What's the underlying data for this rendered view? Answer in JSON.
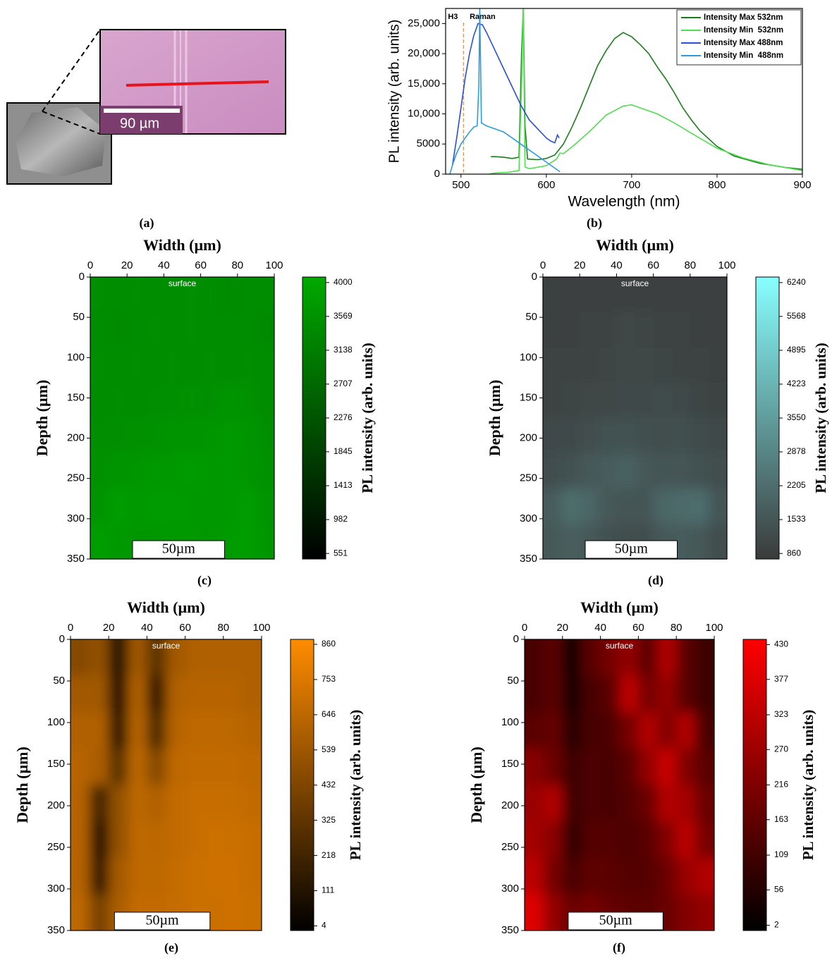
{
  "panel_a": {
    "scale_label": "90 µm",
    "caption": "(a)"
  },
  "chart_data": [
    {
      "type": "line",
      "caption": "(b)",
      "xlabel": "Wavelength (nm)",
      "ylabel": "PL intensity (arb. units)",
      "xlim": [
        482,
        900
      ],
      "xticks": [
        500,
        600,
        700,
        800,
        900
      ],
      "ylim": [
        0,
        27500
      ],
      "yticks": [
        0,
        5000,
        {
          "value": 10000,
          "label": "10,000"
        },
        {
          "value": 15000,
          "label": "15,000"
        },
        {
          "value": 20000,
          "label": "20,000"
        },
        {
          "value": 25000,
          "label": "25,000"
        }
      ],
      "legend": "upper right",
      "annotations": [
        {
          "text": "H3",
          "x": 503
        },
        {
          "text": "Raman",
          "x": 522
        }
      ],
      "series": [
        {
          "name": "Intensity Max 532nm",
          "color": "#1b7d1b",
          "x": [
            535,
            540,
            550,
            560,
            568,
            571,
            573,
            575,
            578,
            590,
            600,
            610,
            620,
            630,
            640,
            650,
            660,
            670,
            680,
            690,
            700,
            710,
            720,
            730,
            740,
            750,
            760,
            770,
            780,
            800,
            820,
            850,
            880,
            900
          ],
          "values": [
            2900,
            2900,
            2800,
            2600,
            2800,
            20000,
            27500,
            8000,
            2500,
            2400,
            2600,
            3200,
            5000,
            7800,
            11000,
            14500,
            18000,
            20500,
            22500,
            23500,
            22800,
            21500,
            20000,
            17800,
            15800,
            13500,
            11000,
            9000,
            7200,
            4600,
            3000,
            1800,
            1100,
            800
          ]
        },
        {
          "name": "Intensity Min  532nm",
          "color": "#4ee04e",
          "x": [
            533,
            540,
            555,
            568,
            571,
            573,
            575,
            580,
            600,
            612,
            616,
            620,
            630,
            650,
            670,
            690,
            700,
            710,
            730,
            750,
            770,
            800,
            830,
            860,
            900
          ],
          "values": [
            0,
            200,
            300,
            600,
            15000,
            27500,
            1200,
            900,
            1400,
            2500,
            3500,
            3400,
            4500,
            7000,
            9800,
            11300,
            11500,
            11000,
            10000,
            8500,
            6800,
            4300,
            2700,
            1600,
            600
          ]
        },
        {
          "name": "Intensity Max 488nm",
          "color": "#2a4fd8",
          "x": [
            490,
            495,
            500,
            505,
            510,
            515,
            520,
            525,
            530,
            540,
            550,
            560,
            570,
            580,
            590,
            600,
            605,
            610,
            613,
            615
          ],
          "values": [
            1500,
            6000,
            11000,
            16000,
            20000,
            23000,
            25000,
            24800,
            23500,
            20500,
            17500,
            14500,
            11500,
            9000,
            7500,
            6000,
            5500,
            5200,
            6500,
            6000
          ]
        },
        {
          "name": "Intensity Min  488nm",
          "color": "#2a9de0",
          "x": [
            487,
            490,
            495,
            500,
            505,
            510,
            515,
            519,
            521,
            522,
            524,
            530,
            540,
            550,
            560,
            570,
            580,
            590,
            600,
            610,
            616
          ],
          "values": [
            0,
            1500,
            3500,
            5000,
            6000,
            7000,
            7800,
            8000,
            15000,
            27500,
            8500,
            8000,
            7500,
            7000,
            6000,
            5000,
            4000,
            3000,
            2000,
            1000,
            400
          ]
        }
      ]
    },
    {
      "type": "heatmap",
      "caption": "(c)",
      "xlabel": "Width (µm)",
      "ylabel": "Depth (µm)",
      "xlim": [
        0,
        100
      ],
      "xticks": [
        0,
        20,
        40,
        60,
        80,
        100
      ],
      "ylim": [
        0,
        350
      ],
      "y_inverted": true,
      "yticks": [
        0,
        50,
        100,
        150,
        200,
        250,
        300,
        350
      ],
      "annotation": "surface",
      "scale_bar": "50µm",
      "colorbar": {
        "label": "PL intensity (arb. units)",
        "clim": [
          480,
          4070
        ],
        "colormap": [
          "#000000",
          "#00aa00"
        ],
        "ticks": [
          551,
          982,
          1413,
          1845,
          2276,
          2707,
          3138,
          3569,
          4000
        ]
      },
      "z": [
        [
          3500,
          3450,
          3500,
          3450,
          3450,
          3500,
          3450,
          3400,
          3450,
          3450
        ],
        [
          3450,
          3400,
          3450,
          3500,
          3450,
          3500,
          3450,
          3450,
          3450,
          3400
        ],
        [
          3500,
          3450,
          3500,
          3450,
          3500,
          3450,
          3500,
          3450,
          3500,
          3450
        ],
        [
          3450,
          3500,
          3450,
          3500,
          3500,
          3550,
          3500,
          3600,
          3550,
          3450
        ],
        [
          3500,
          3500,
          3550,
          3550,
          3600,
          3600,
          3650,
          3700,
          3650,
          3500
        ],
        [
          3550,
          3600,
          3650,
          3700,
          3700,
          3750,
          3700,
          3700,
          3650,
          3550
        ],
        [
          3600,
          3800,
          3700,
          3750,
          3750,
          3700,
          3700,
          3700,
          3800,
          3600
        ],
        [
          3800,
          3700,
          3650,
          3650,
          3700,
          3700,
          3650,
          3750,
          3800,
          3650
        ]
      ]
    },
    {
      "type": "heatmap",
      "caption": "(d)",
      "xlabel": "Width (µm)",
      "ylabel": "Depth (µm)",
      "xlim": [
        0,
        100
      ],
      "xticks": [
        0,
        20,
        40,
        60,
        80,
        100
      ],
      "ylim": [
        0,
        350
      ],
      "y_inverted": true,
      "yticks": [
        0,
        50,
        100,
        150,
        200,
        250,
        300,
        350
      ],
      "annotation": "surface",
      "scale_bar": "50µm",
      "colorbar": {
        "label": "PL intensity (arb. units)",
        "clim": [
          750,
          6350
        ],
        "colormap": [
          "#3a3a3a",
          "#88ffff"
        ],
        "ticks": [
          860,
          1533,
          2205,
          2878,
          3550,
          4223,
          4895,
          5568,
          6240
        ]
      },
      "z": [
        [
          950,
          950,
          950,
          950,
          950,
          950,
          950,
          950,
          950,
          950
        ],
        [
          950,
          950,
          1000,
          1000,
          1100,
          1050,
          1000,
          1000,
          950,
          950
        ],
        [
          1000,
          1000,
          1000,
          1050,
          1100,
          1100,
          1050,
          1000,
          1000,
          950
        ],
        [
          1000,
          1050,
          1100,
          1100,
          1150,
          1200,
          1250,
          1150,
          1050,
          1000
        ],
        [
          1150,
          1200,
          1300,
          1400,
          1400,
          1350,
          1300,
          1350,
          1250,
          1150
        ],
        [
          1300,
          1400,
          1600,
          1700,
          1900,
          1600,
          1500,
          1500,
          1400,
          1300
        ],
        [
          1700,
          2200,
          2000,
          1600,
          1500,
          1500,
          2000,
          2100,
          2200,
          1500
        ],
        [
          1600,
          1800,
          1600,
          1400,
          1300,
          1300,
          1600,
          1700,
          1600,
          1300
        ]
      ]
    },
    {
      "type": "heatmap",
      "caption": "(e)",
      "xlabel": "Width (µm)",
      "ylabel": "Depth (µm)",
      "xlim": [
        0,
        100
      ],
      "xticks": [
        0,
        20,
        40,
        60,
        80,
        100
      ],
      "ylim": [
        0,
        350
      ],
      "y_inverted": true,
      "yticks": [
        0,
        50,
        100,
        150,
        200,
        250,
        300,
        350
      ],
      "annotation": "surface",
      "scale_bar": "50µm",
      "colorbar": {
        "label": "PL intensity (arb. units)",
        "clim": [
          -10,
          875
        ],
        "colormap": [
          "#000000",
          "#ff8c00"
        ],
        "ticks": [
          4,
          111,
          218,
          325,
          432,
          539,
          646,
          753,
          860
        ]
      },
      "z": [
        [
          450,
          500,
          60,
          550,
          300,
          550,
          600,
          600,
          600,
          600
        ],
        [
          550,
          550,
          80,
          600,
          150,
          600,
          620,
          620,
          620,
          600
        ],
        [
          600,
          600,
          120,
          620,
          250,
          620,
          650,
          650,
          640,
          620
        ],
        [
          620,
          580,
          300,
          640,
          450,
          650,
          660,
          660,
          660,
          650
        ],
        [
          620,
          200,
          500,
          640,
          600,
          660,
          680,
          680,
          680,
          660
        ],
        [
          620,
          100,
          500,
          650,
          640,
          660,
          680,
          700,
          690,
          680
        ],
        [
          620,
          150,
          560,
          650,
          650,
          670,
          690,
          700,
          700,
          680
        ],
        [
          640,
          400,
          580,
          660,
          660,
          670,
          690,
          690,
          700,
          690
        ]
      ]
    },
    {
      "type": "heatmap",
      "caption": "(f)",
      "xlabel": "Width (µm)",
      "ylabel": "Depth (µm)",
      "xlim": [
        0,
        100
      ],
      "xticks": [
        0,
        20,
        40,
        60,
        80,
        100
      ],
      "ylim": [
        0,
        350
      ],
      "y_inverted": true,
      "yticks": [
        0,
        50,
        100,
        150,
        200,
        250,
        300,
        350
      ],
      "annotation": "surface",
      "scale_bar": "50µm",
      "colorbar": {
        "label": "PL intensity (arb. units)",
        "clim": [
          -6,
          438
        ],
        "colormap": [
          "#000000",
          "#ff0000"
        ],
        "ticks": [
          2,
          56,
          109,
          163,
          216,
          270,
          323,
          377,
          430
        ]
      },
      "z": [
        [
          120,
          150,
          20,
          150,
          200,
          250,
          150,
          300,
          150,
          100
        ],
        [
          120,
          150,
          30,
          120,
          150,
          320,
          200,
          250,
          150,
          100
        ],
        [
          150,
          170,
          60,
          120,
          130,
          200,
          300,
          220,
          300,
          120
        ],
        [
          230,
          180,
          100,
          130,
          120,
          150,
          250,
          340,
          220,
          150
        ],
        [
          260,
          300,
          100,
          130,
          120,
          140,
          180,
          300,
          280,
          180
        ],
        [
          280,
          230,
          80,
          140,
          140,
          130,
          150,
          220,
          320,
          200
        ],
        [
          320,
          200,
          120,
          160,
          150,
          140,
          140,
          180,
          260,
          300
        ],
        [
          380,
          250,
          180,
          200,
          170,
          160,
          150,
          180,
          220,
          250
        ]
      ]
    }
  ]
}
